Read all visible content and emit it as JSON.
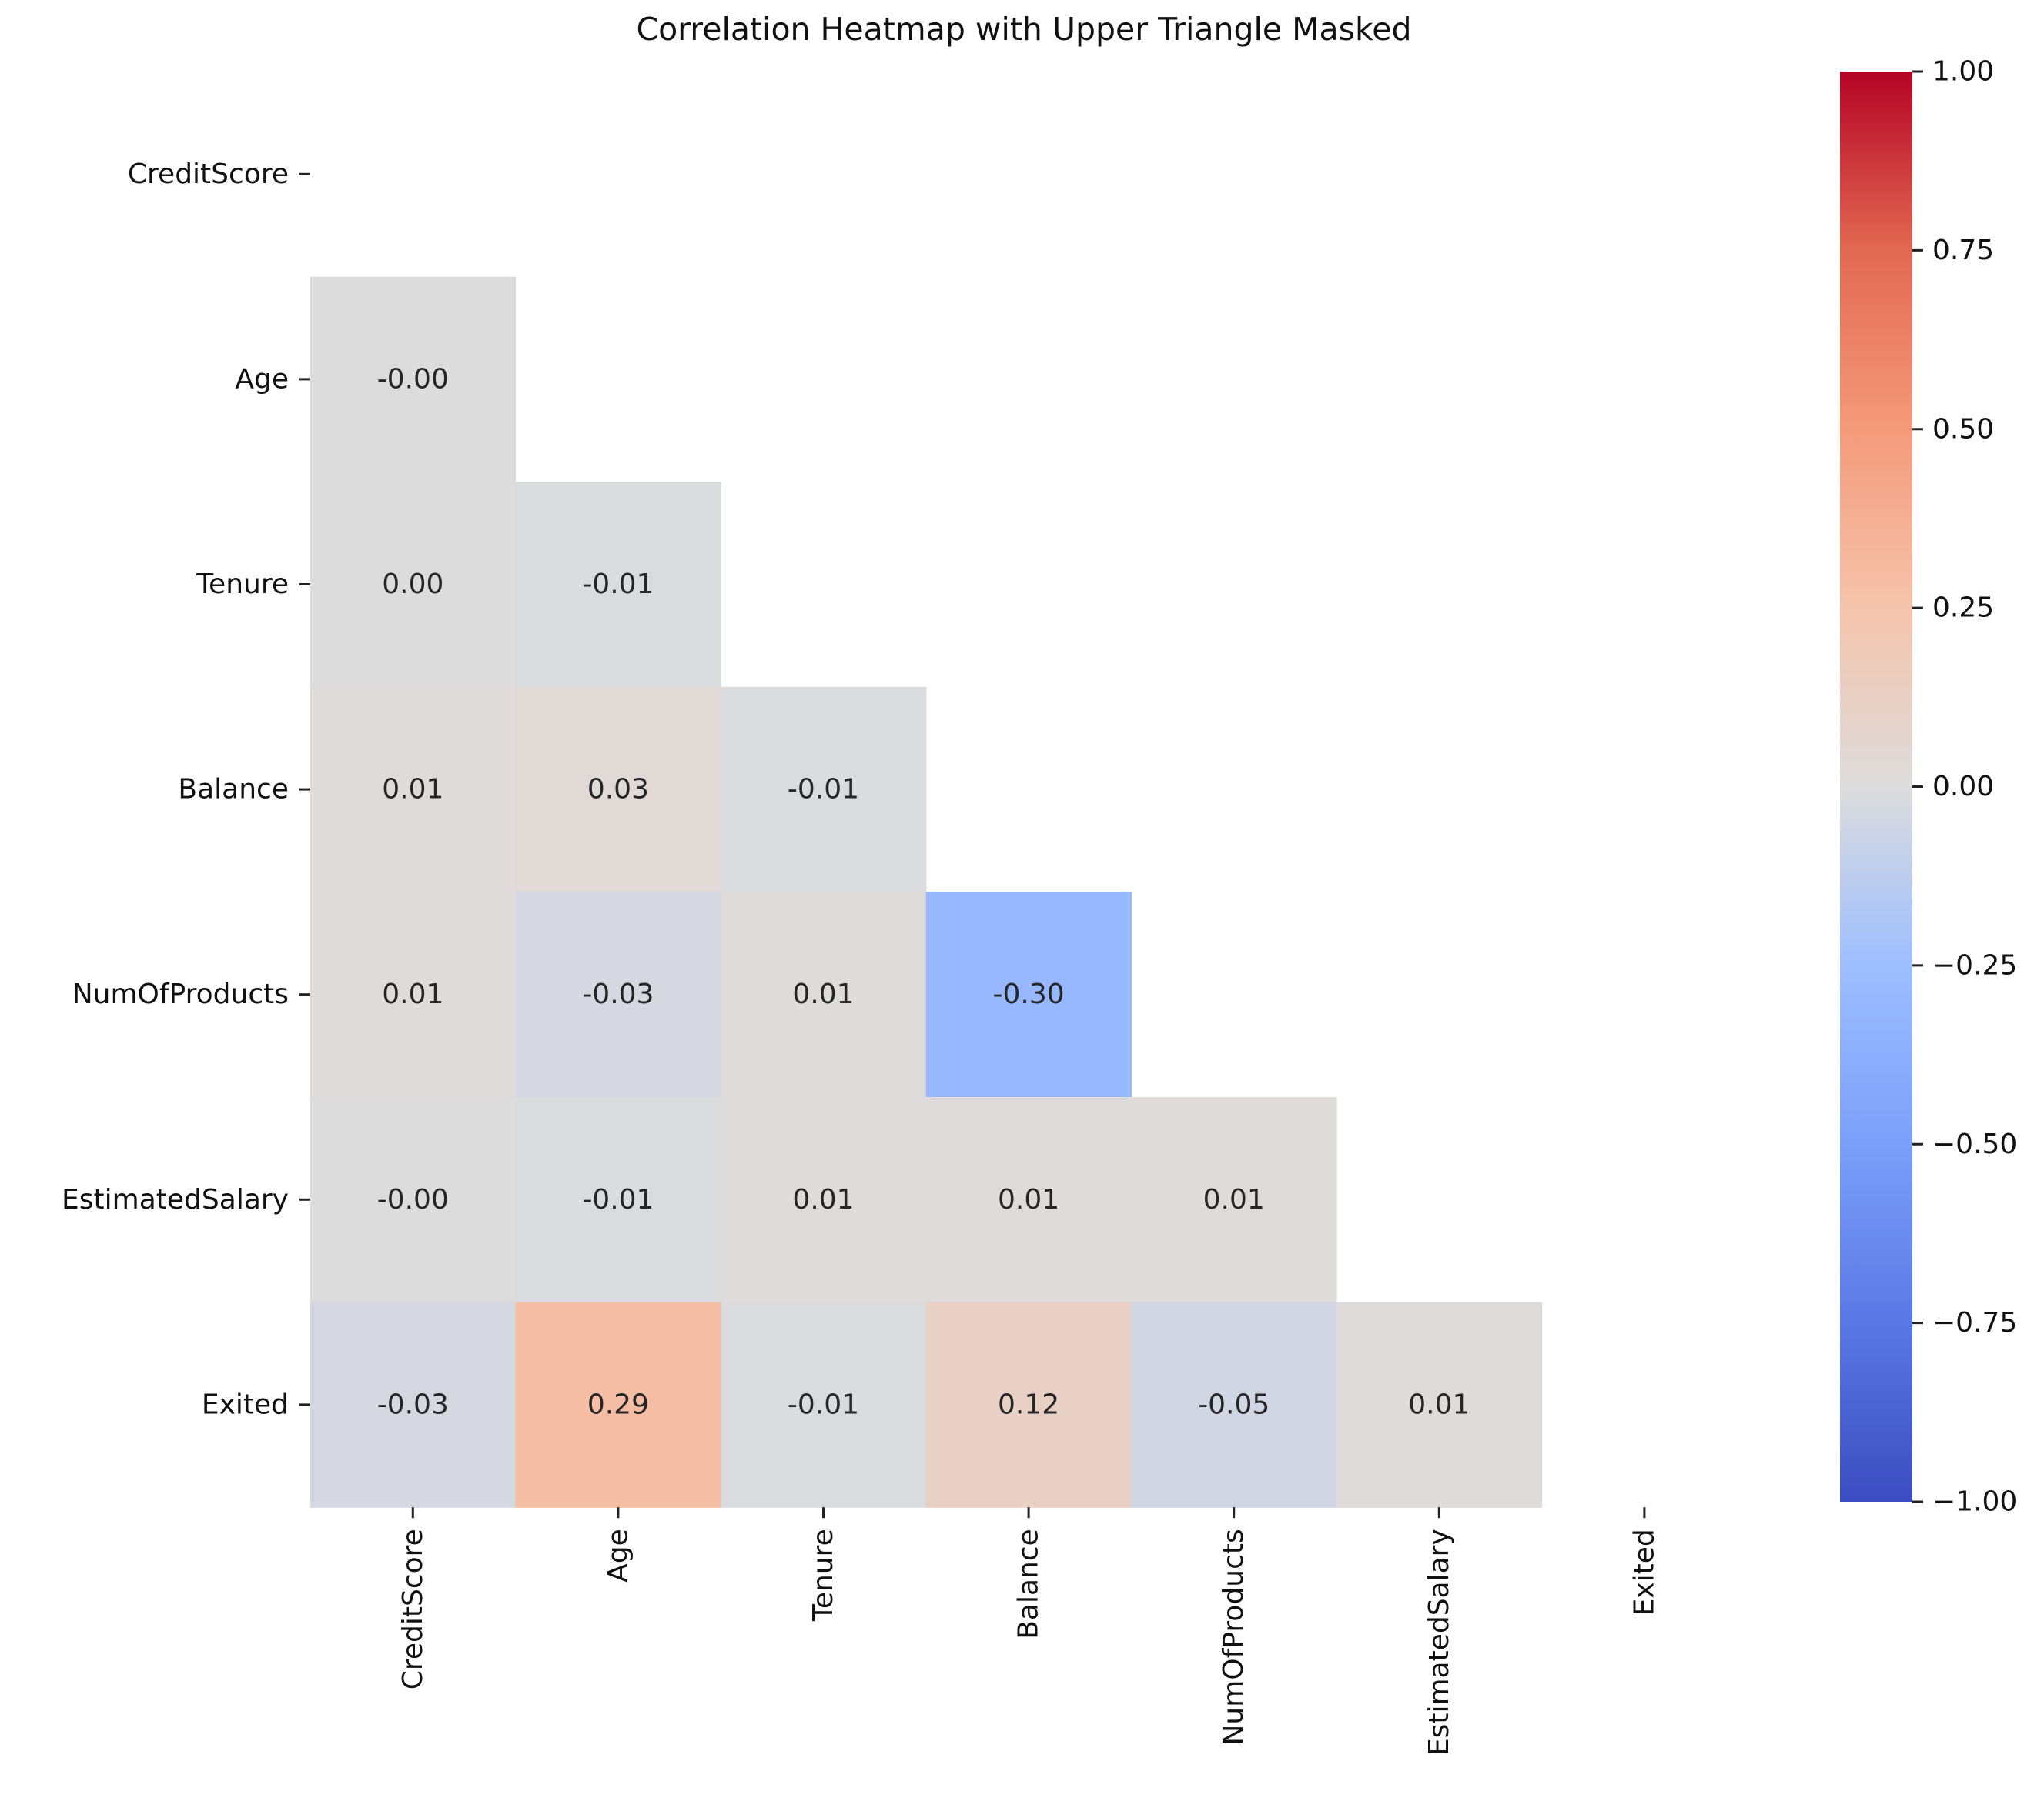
{
  "chart_data": {
    "type": "heatmap",
    "title": "Correlation Heatmap with Upper Triangle Masked",
    "variables": [
      "CreditScore",
      "Age",
      "Tenure",
      "Balance",
      "NumOfProducts",
      "EstimatedSalary",
      "Exited"
    ],
    "mask": "upper-triangle-including-diagonal",
    "cells": [
      {
        "row": "Age",
        "col": "CreditScore",
        "value": -0.0,
        "label": "-0.00"
      },
      {
        "row": "Tenure",
        "col": "CreditScore",
        "value": 0.0,
        "label": "0.00"
      },
      {
        "row": "Tenure",
        "col": "Age",
        "value": -0.01,
        "label": "-0.01"
      },
      {
        "row": "Balance",
        "col": "CreditScore",
        "value": 0.01,
        "label": "0.01"
      },
      {
        "row": "Balance",
        "col": "Age",
        "value": 0.03,
        "label": "0.03"
      },
      {
        "row": "Balance",
        "col": "Tenure",
        "value": -0.01,
        "label": "-0.01"
      },
      {
        "row": "NumOfProducts",
        "col": "CreditScore",
        "value": 0.01,
        "label": "0.01"
      },
      {
        "row": "NumOfProducts",
        "col": "Age",
        "value": -0.03,
        "label": "-0.03"
      },
      {
        "row": "NumOfProducts",
        "col": "Tenure",
        "value": 0.01,
        "label": "0.01"
      },
      {
        "row": "NumOfProducts",
        "col": "Balance",
        "value": -0.3,
        "label": "-0.30"
      },
      {
        "row": "EstimatedSalary",
        "col": "CreditScore",
        "value": -0.0,
        "label": "-0.00"
      },
      {
        "row": "EstimatedSalary",
        "col": "Age",
        "value": -0.01,
        "label": "-0.01"
      },
      {
        "row": "EstimatedSalary",
        "col": "Tenure",
        "value": 0.01,
        "label": "0.01"
      },
      {
        "row": "EstimatedSalary",
        "col": "Balance",
        "value": 0.01,
        "label": "0.01"
      },
      {
        "row": "EstimatedSalary",
        "col": "NumOfProducts",
        "value": 0.01,
        "label": "0.01"
      },
      {
        "row": "Exited",
        "col": "CreditScore",
        "value": -0.03,
        "label": "-0.03"
      },
      {
        "row": "Exited",
        "col": "Age",
        "value": 0.29,
        "label": "0.29"
      },
      {
        "row": "Exited",
        "col": "Tenure",
        "value": -0.01,
        "label": "-0.01"
      },
      {
        "row": "Exited",
        "col": "Balance",
        "value": 0.12,
        "label": "0.12"
      },
      {
        "row": "Exited",
        "col": "NumOfProducts",
        "value": -0.05,
        "label": "-0.05"
      },
      {
        "row": "Exited",
        "col": "EstimatedSalary",
        "value": 0.01,
        "label": "0.01"
      }
    ],
    "colorbar": {
      "colormap": "coolwarm",
      "vmin": -1.0,
      "vmax": 1.0,
      "ticks": [
        1.0,
        0.75,
        0.5,
        0.25,
        0.0,
        -0.25,
        -0.5,
        -0.75,
        -1.0
      ],
      "tick_labels": [
        "1.00",
        "0.75",
        "0.50",
        "0.25",
        "0.00",
        "−0.25",
        "−0.50",
        "−0.75",
        "−1.00"
      ],
      "position": "right"
    },
    "grid": false
  }
}
